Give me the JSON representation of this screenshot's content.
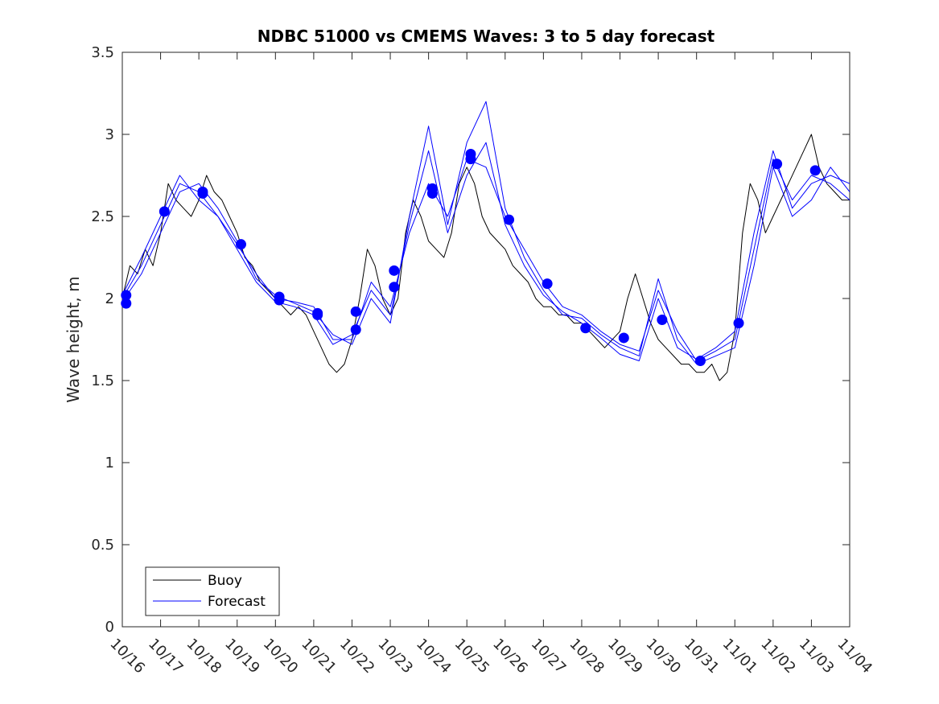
{
  "chart_data": {
    "type": "line",
    "title": "NDBC 51000 vs CMEMS Waves: 3 to 5 day forecast",
    "xlabel": "",
    "ylabel": "Wave height, m",
    "ylim": [
      0,
      3.5
    ],
    "xlim": [
      0,
      19
    ],
    "yticks": [
      0,
      0.5,
      1,
      1.5,
      2,
      2.5,
      3,
      3.5
    ],
    "yticklabels": [
      "0",
      "0.5",
      "1",
      "1.5",
      "2",
      "2.5",
      "3",
      "3.5"
    ],
    "xticks": [
      0,
      1,
      2,
      3,
      4,
      5,
      6,
      7,
      8,
      9,
      10,
      11,
      12,
      13,
      14,
      15,
      16,
      17,
      18,
      19
    ],
    "xticklabels": [
      "10/16",
      "10/17",
      "10/18",
      "10/19",
      "10/20",
      "10/21",
      "10/22",
      "10/23",
      "10/24",
      "10/25",
      "10/26",
      "10/27",
      "10/28",
      "10/29",
      "10/30",
      "10/31",
      "11/01",
      "11/02",
      "11/03",
      "11/04"
    ],
    "legend": {
      "location": "bottom-left",
      "entries": [
        "Buoy",
        "Forecast"
      ]
    },
    "colors": {
      "buoy": "#000000",
      "forecast": "#0000ff",
      "axis": "#262626"
    },
    "series": [
      {
        "name": "Buoy",
        "x": [
          0,
          0.2,
          0.4,
          0.6,
          0.8,
          1.0,
          1.2,
          1.4,
          1.6,
          1.8,
          2.0,
          2.2,
          2.4,
          2.6,
          2.8,
          3.0,
          3.2,
          3.4,
          3.6,
          3.8,
          4.0,
          4.2,
          4.4,
          4.6,
          4.8,
          5.0,
          5.2,
          5.4,
          5.6,
          5.8,
          6.0,
          6.2,
          6.4,
          6.6,
          6.8,
          7.0,
          7.2,
          7.4,
          7.6,
          7.8,
          8.0,
          8.2,
          8.4,
          8.6,
          8.8,
          9.0,
          9.2,
          9.4,
          9.6,
          9.8,
          10.0,
          10.2,
          10.4,
          10.6,
          10.8,
          11.0,
          11.2,
          11.4,
          11.6,
          11.8,
          12.0,
          12.2,
          12.4,
          12.6,
          12.8,
          13.0,
          13.2,
          13.4,
          13.6,
          13.8,
          14.0,
          14.2,
          14.4,
          14.6,
          14.8,
          15.0,
          15.2,
          15.4,
          15.6,
          15.8,
          16.0,
          16.2,
          16.4,
          16.6,
          16.8,
          17.0,
          17.2,
          17.4,
          17.6,
          17.8,
          18.0,
          18.2,
          18.4,
          18.6,
          18.8,
          19.0
        ],
        "values": [
          2.0,
          2.2,
          2.15,
          2.3,
          2.2,
          2.4,
          2.7,
          2.6,
          2.55,
          2.5,
          2.6,
          2.75,
          2.65,
          2.6,
          2.5,
          2.4,
          2.25,
          2.2,
          2.1,
          2.05,
          2.0,
          1.95,
          1.9,
          1.95,
          1.9,
          1.8,
          1.7,
          1.6,
          1.55,
          1.6,
          1.75,
          2.0,
          2.3,
          2.2,
          2.0,
          1.9,
          2.0,
          2.4,
          2.6,
          2.5,
          2.35,
          2.3,
          2.25,
          2.4,
          2.7,
          2.8,
          2.7,
          2.5,
          2.4,
          2.35,
          2.3,
          2.2,
          2.15,
          2.1,
          2.0,
          1.95,
          1.95,
          1.9,
          1.9,
          1.85,
          1.85,
          1.8,
          1.75,
          1.7,
          1.75,
          1.8,
          2.0,
          2.15,
          2.0,
          1.85,
          1.75,
          1.7,
          1.65,
          1.6,
          1.6,
          1.55,
          1.55,
          1.6,
          1.5,
          1.55,
          1.8,
          2.4,
          2.7,
          2.6,
          2.4,
          2.5,
          2.6,
          2.7,
          2.8,
          2.9,
          3.0,
          2.8,
          2.7,
          2.65,
          2.6,
          2.6
        ]
      },
      {
        "name": "Forecast",
        "x": [
          0,
          0.5,
          1,
          1.5,
          2,
          2.5,
          3,
          3.5,
          4,
          4.5,
          5,
          5.5,
          6,
          6.5,
          7,
          7.5,
          8,
          8.5,
          9,
          9.5,
          10,
          10.5,
          11,
          11.5,
          12,
          12.5,
          13,
          13.5,
          14,
          14.5,
          15,
          15.5,
          16,
          16.5,
          17,
          17.5,
          18,
          18.5,
          19
        ],
        "values": [
          2.0,
          2.2,
          2.45,
          2.7,
          2.65,
          2.5,
          2.33,
          2.15,
          2.0,
          1.98,
          1.95,
          1.75,
          1.75,
          2.1,
          1.95,
          2.4,
          2.7,
          2.5,
          2.85,
          2.8,
          2.5,
          2.3,
          2.1,
          1.95,
          1.9,
          1.8,
          1.72,
          1.68,
          2.05,
          1.8,
          1.62,
          1.68,
          1.75,
          2.3,
          2.85,
          2.6,
          2.75,
          2.7,
          2.6
        ]
      },
      {
        "name": "Forecast",
        "x": [
          0,
          0.5,
          1,
          1.5,
          2,
          2.5,
          3,
          3.5,
          4,
          4.5,
          5,
          5.5,
          6,
          6.5,
          7,
          7.5,
          8,
          8.5,
          9,
          9.5,
          10,
          10.5,
          11,
          11.5,
          12,
          12.5,
          13,
          13.5,
          14,
          14.5,
          15,
          15.5,
          16,
          16.5,
          17,
          17.5,
          18,
          18.5,
          19
        ],
        "values": [
          1.98,
          2.15,
          2.4,
          2.65,
          2.7,
          2.55,
          2.35,
          2.12,
          2.02,
          1.97,
          1.92,
          1.78,
          1.72,
          2.0,
          1.85,
          2.5,
          3.05,
          2.45,
          2.95,
          3.2,
          2.55,
          2.25,
          2.05,
          1.9,
          1.88,
          1.78,
          1.7,
          1.65,
          2.12,
          1.75,
          1.6,
          1.65,
          1.7,
          2.2,
          2.8,
          2.5,
          2.6,
          2.8,
          2.65
        ]
      },
      {
        "name": "Forecast",
        "x": [
          0,
          0.5,
          1,
          1.5,
          2,
          2.5,
          3,
          3.5,
          4,
          4.5,
          5,
          5.5,
          6,
          6.5,
          7,
          7.5,
          8,
          8.5,
          9,
          9.5,
          10,
          10.5,
          11,
          11.5,
          12,
          12.5,
          13,
          13.5,
          14,
          14.5,
          15,
          15.5,
          16,
          16.5,
          17,
          17.5,
          18,
          18.5,
          19
        ],
        "values": [
          2.02,
          2.25,
          2.5,
          2.75,
          2.6,
          2.5,
          2.3,
          2.1,
          1.98,
          1.95,
          1.9,
          1.72,
          1.78,
          2.05,
          1.9,
          2.45,
          2.9,
          2.4,
          2.75,
          2.95,
          2.45,
          2.2,
          2.02,
          1.92,
          1.85,
          1.76,
          1.66,
          1.62,
          2.0,
          1.7,
          1.63,
          1.7,
          1.8,
          2.4,
          2.9,
          2.55,
          2.7,
          2.75,
          2.7
        ]
      }
    ],
    "markers": {
      "name": "Forecast points",
      "x": [
        0.1,
        0.1,
        1.1,
        2.1,
        2.1,
        3.1,
        4.1,
        4.1,
        5.1,
        5.1,
        6.1,
        6.1,
        7.1,
        7.1,
        8.1,
        8.1,
        9.1,
        9.1,
        10.1,
        11.1,
        12.1,
        13.1,
        14.1,
        15.1,
        16.1,
        17.1,
        18.1
      ],
      "values": [
        1.97,
        2.02,
        2.53,
        2.65,
        2.64,
        2.33,
        2.01,
        1.99,
        1.91,
        1.9,
        1.92,
        1.81,
        2.17,
        2.07,
        2.67,
        2.64,
        2.88,
        2.85,
        2.48,
        2.09,
        1.82,
        1.76,
        1.87,
        1.62,
        1.85,
        2.82,
        2.78
      ]
    }
  }
}
